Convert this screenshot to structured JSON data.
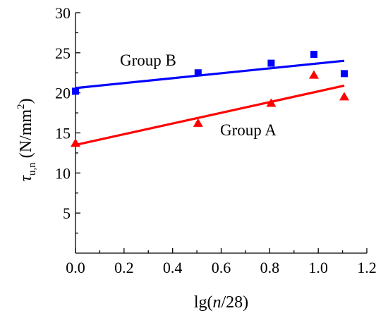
{
  "chart_data": {
    "type": "scatter",
    "xlabel": {
      "prefix": "lg(",
      "italic": "n",
      "suffix": "/28)"
    },
    "ylabel": {
      "symbol": "τ",
      "subscript": "u,n",
      "unit_open": " (N/mm",
      "unit_sup": "2",
      "unit_close": ")"
    },
    "xlim": [
      0.0,
      1.2
    ],
    "ylim": [
      0,
      30
    ],
    "xticks": [
      "0.0",
      "0.2",
      "0.4",
      "0.6",
      "0.8",
      "1.0",
      "1.2"
    ],
    "yticks": [
      "5",
      "10",
      "15",
      "20",
      "25",
      "30"
    ],
    "grid": false,
    "series": [
      {
        "name": "Group A",
        "marker": "triangle",
        "color": "#ff0000",
        "x": [
          0.0,
          0.505,
          0.806,
          0.982,
          1.107
        ],
        "y": [
          13.7,
          16.2,
          18.7,
          22.2,
          19.5
        ],
        "fit": {
          "x": [
            0.0,
            1.107
          ],
          "y": [
            13.5,
            20.9
          ]
        }
      },
      {
        "name": "Group B",
        "marker": "square",
        "color": "#0000ff",
        "x": [
          0.0,
          0.505,
          0.806,
          0.982,
          1.107
        ],
        "y": [
          20.2,
          22.5,
          23.7,
          24.8,
          22.4
        ],
        "fit": {
          "x": [
            0.0,
            1.107
          ],
          "y": [
            20.6,
            24.0
          ]
        }
      }
    ]
  }
}
